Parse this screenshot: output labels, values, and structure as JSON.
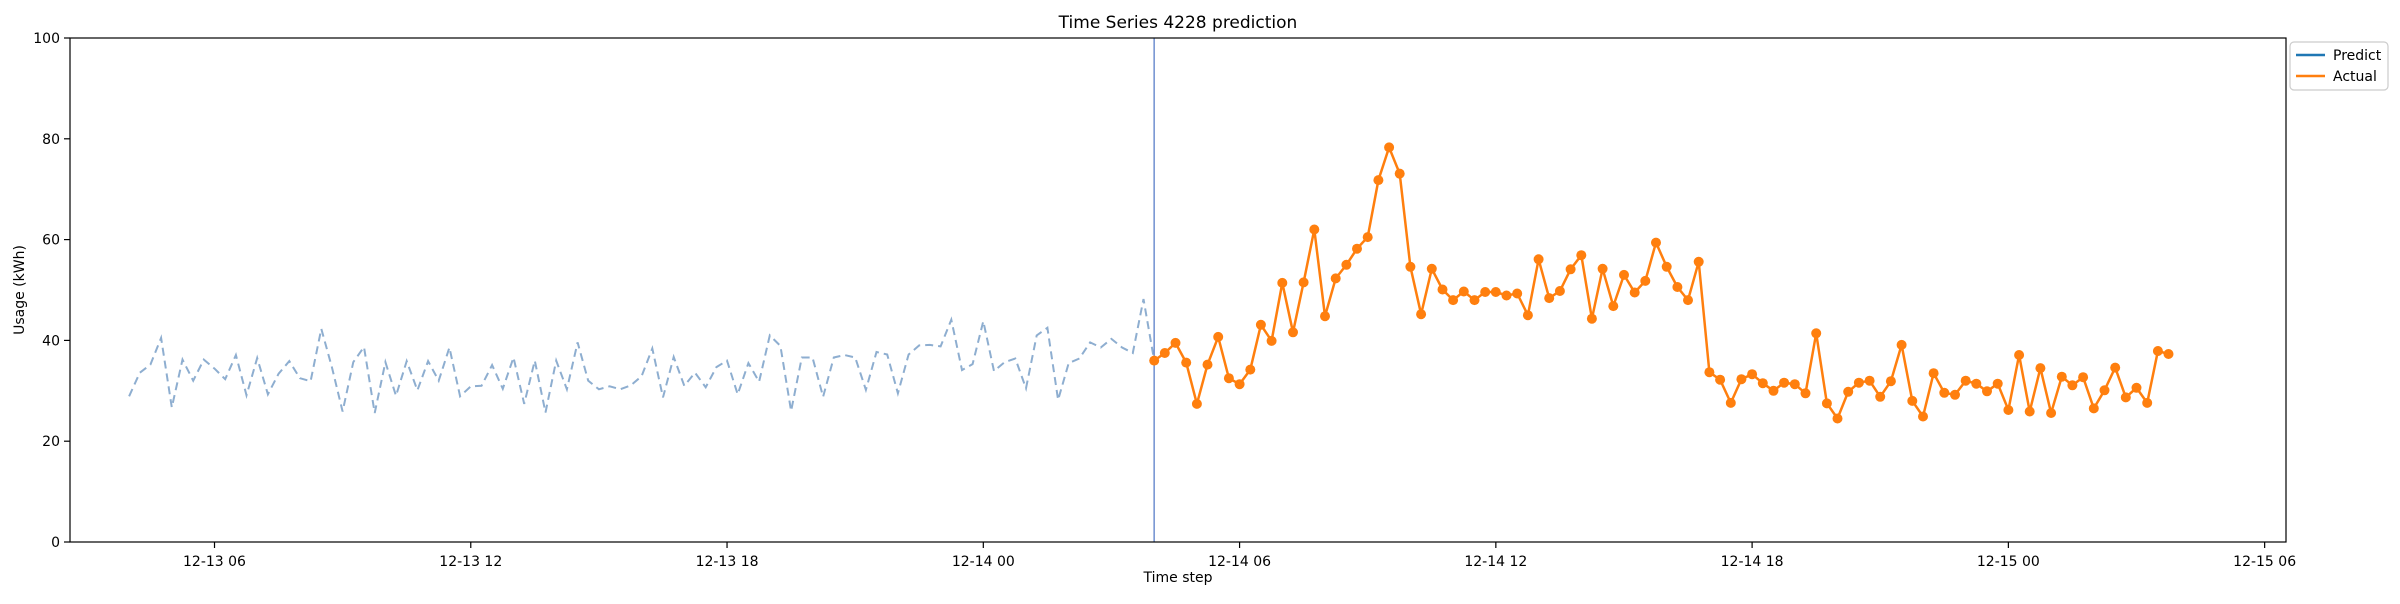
{
  "chart_data": {
    "type": "line",
    "title": "Time Series 4228 prediction",
    "xlabel": "Time step",
    "ylabel": "Usage (kWh)",
    "ylim": [
      0,
      100
    ],
    "xlim": [
      "2024-12-13 02:37",
      "2024-12-15 06:30"
    ],
    "yticks": [
      0,
      20,
      40,
      60,
      80,
      100
    ],
    "xticks": [
      {
        "label": "12-13 06",
        "t": "2024-12-13 06:00"
      },
      {
        "label": "12-13 12",
        "t": "2024-12-13 12:00"
      },
      {
        "label": "12-13 18",
        "t": "2024-12-13 18:00"
      },
      {
        "label": "12-14 00",
        "t": "2024-12-14 00:00"
      },
      {
        "label": "12-14 06",
        "t": "2024-12-14 06:00"
      },
      {
        "label": "12-14 12",
        "t": "2024-12-14 12:00"
      },
      {
        "label": "12-14 18",
        "t": "2024-12-14 18:00"
      },
      {
        "label": "12-15 00",
        "t": "2024-12-15 00:00"
      },
      {
        "label": "12-15 06",
        "t": "2024-12-15 06:00"
      }
    ],
    "grid": false,
    "legend": "outside top-right",
    "colors": {
      "predict": "#1f77b4",
      "actual": "#ff7f0e",
      "history": "#8eaed0",
      "forecast_start": "#6f8fd0"
    },
    "forecast_start": "2024-12-14 04:00",
    "series": [
      {
        "name": "Predict",
        "x": [],
        "values": []
      },
      {
        "name": "Actual",
        "x_start": "2024-12-14 04:00",
        "x_interval_minutes": 15,
        "values": [
          36.0,
          37.5,
          39.5,
          35.6,
          27.4,
          35.2,
          40.7,
          32.5,
          31.3,
          34.2,
          43.1,
          39.9,
          51.4,
          41.6,
          51.5,
          62.0,
          44.8,
          52.3,
          55.0,
          58.2,
          60.5,
          71.8,
          78.3,
          73.1,
          54.6,
          45.2,
          54.2,
          50.1,
          48.0,
          49.7,
          48.0,
          49.6,
          49.6,
          48.9,
          49.3,
          45.0,
          56.1,
          48.4,
          49.8,
          54.1,
          56.9,
          44.3,
          54.2,
          46.8,
          53.0,
          49.5,
          51.8,
          59.4,
          54.6,
          50.6,
          48.0,
          55.6,
          33.7,
          32.2,
          27.6,
          32.3,
          33.3,
          31.5,
          30.0,
          31.6,
          31.3,
          29.5,
          41.4,
          27.5,
          24.5,
          29.8,
          31.6,
          32.0,
          28.8,
          31.9,
          39.1,
          28.0,
          24.9,
          33.5,
          29.6,
          29.2,
          32.0,
          31.4,
          29.9,
          31.4,
          26.2,
          37.1,
          25.9,
          34.5,
          25.6,
          32.8,
          31.1,
          32.7,
          26.5,
          30.1,
          34.6,
          28.7,
          30.6,
          27.6,
          37.9,
          37.3
        ]
      }
    ],
    "history": {
      "x_start": "2024-12-13 04:00",
      "x_interval_minutes": 15,
      "values": [
        28.9,
        33.6,
        35.2,
        40.5,
        26.7,
        36.2,
        32.0,
        36.2,
        34.4,
        32.3,
        37.1,
        29.1,
        36.5,
        29.3,
        33.4,
        35.9,
        32.5,
        31.9,
        42.3,
        34.6,
        25.9,
        35.7,
        38.7,
        25.6,
        35.7,
        29.0,
        35.9,
        30.1,
        35.9,
        32.0,
        38.6,
        28.9,
        30.9,
        31.0,
        35.1,
        30.4,
        36.6,
        27.4,
        36.0,
        25.7,
        36.0,
        30.3,
        39.6,
        32.0,
        30.3,
        30.9,
        30.3,
        31.1,
        32.9,
        38.4,
        28.7,
        36.7,
        31.0,
        33.6,
        30.7,
        34.7,
        36.0,
        29.3,
        35.5,
        31.8,
        41.0,
        38.9,
        26.0,
        36.6,
        36.6,
        28.8,
        36.6,
        37.1,
        36.6,
        30.2,
        37.7,
        37.2,
        29.5,
        37.2,
        39.0,
        39.1,
        38.8,
        44.1,
        34.1,
        35.3,
        43.8,
        33.9,
        35.7,
        36.4,
        30.5,
        41.0,
        42.5,
        28.2,
        35.5,
        36.4,
        39.6,
        38.6,
        40.3,
        38.6,
        37.5,
        48.2,
        36.0
      ]
    },
    "legend_items": [
      {
        "label": "Predict",
        "color": "#1f77b4"
      },
      {
        "label": "Actual",
        "color": "#ff7f0e"
      }
    ]
  }
}
